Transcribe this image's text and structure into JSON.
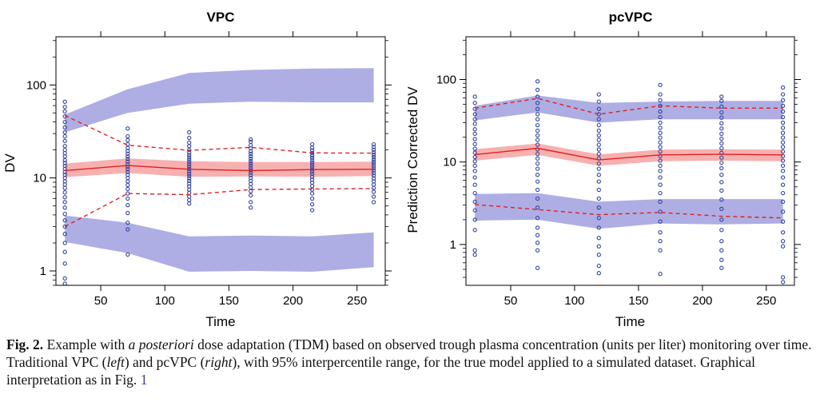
{
  "chart_data": [
    {
      "type": "vpc",
      "title": "VPC",
      "xlabel": "Time",
      "ylabel": "DV",
      "yscale": "log",
      "xlim": [
        15,
        272
      ],
      "ylim": [
        0.7,
        330
      ],
      "xticks": [
        50,
        100,
        150,
        200,
        250
      ],
      "xtick_labels": [
        "50",
        "100",
        "150",
        "200",
        "250"
      ],
      "yticks": [
        1,
        10,
        100
      ],
      "ytick_labels": [
        "1",
        "10",
        "100"
      ],
      "bins_x": [
        22,
        71,
        119,
        167,
        215,
        263
      ],
      "median_band": {
        "lower": [
          10.2,
          11.3,
          10.3,
          10.4,
          10.3,
          10.5
        ],
        "upper": [
          14.3,
          16.2,
          15.1,
          14.8,
          14.8,
          15.0
        ]
      },
      "upper_pi_band": {
        "lower": [
          31,
          50,
          63,
          66,
          65,
          65
        ],
        "upper": [
          48,
          90,
          135,
          145,
          150,
          152
        ]
      },
      "lower_pi_band": {
        "lower": [
          2.05,
          1.55,
          0.98,
          1.0,
          0.98,
          1.1
        ],
        "upper": [
          3.95,
          3.3,
          2.35,
          2.4,
          2.35,
          2.6
        ]
      },
      "observed_median": [
        12.0,
        13.6,
        12.4,
        12.0,
        12.3,
        12.4
      ],
      "observed_upper": [
        47,
        22.5,
        19.8,
        21.3,
        18.6,
        18.5
      ],
      "observed_lower": [
        3.0,
        6.8,
        6.6,
        7.5,
        7.6,
        7.7
      ],
      "observations": [
        {
          "x": 22,
          "y": [
            0.73,
            0.83,
            1.2,
            1.6,
            2.0,
            2.5,
            3.0,
            3.5,
            4.1,
            4.8,
            5.5,
            6.2,
            7.0,
            7.8,
            8.5,
            9.2,
            10.0,
            10.8,
            11.6,
            12.5,
            13.5,
            14.5,
            15.5,
            17.0,
            18.5,
            20,
            22,
            25,
            28,
            31,
            35,
            40,
            46,
            52,
            58,
            66
          ]
        },
        {
          "x": 71,
          "y": [
            1.5,
            2.8,
            3.3,
            4.2,
            5.1,
            6.0,
            6.8,
            7.6,
            8.4,
            9.2,
            10.0,
            10.8,
            11.6,
            12.4,
            13.2,
            14.0,
            15.0,
            16.0,
            17.0,
            18.2,
            19.5,
            21,
            23,
            25.5,
            28,
            34
          ]
        },
        {
          "x": 119,
          "y": [
            5.3,
            5.8,
            6.3,
            6.9,
            7.5,
            8.1,
            8.7,
            9.3,
            9.9,
            10.5,
            11.1,
            11.8,
            12.5,
            13.2,
            14.0,
            14.8,
            15.7,
            16.6,
            17.6,
            18.7,
            20,
            22,
            24,
            27,
            31
          ]
        },
        {
          "x": 167,
          "y": [
            4.8,
            5.5,
            6.5,
            7.2,
            7.9,
            8.6,
            9.3,
            10.0,
            10.7,
            11.4,
            12.1,
            12.8,
            13.6,
            14.4,
            15.2,
            16.1,
            17.1,
            18.2,
            19.4,
            20.8,
            22.5,
            24.5,
            26
          ]
        },
        {
          "x": 215,
          "y": [
            4.5,
            5.2,
            6.0,
            6.8,
            7.5,
            8.2,
            8.9,
            9.6,
            10.3,
            11.0,
            11.7,
            12.4,
            13.1,
            13.9,
            14.7,
            15.6,
            16.5,
            17.5,
            18.6,
            19.8,
            21.2,
            23
          ]
        },
        {
          "x": 263,
          "y": [
            5.5,
            6.3,
            7.1,
            7.8,
            8.5,
            9.2,
            9.9,
            10.6,
            11.3,
            12.0,
            12.7,
            13.4,
            14.2,
            15.0,
            15.9,
            16.8,
            17.8,
            18.9,
            20.1,
            21.5,
            23
          ]
        }
      ]
    },
    {
      "type": "vpc",
      "title": "pcVPC",
      "xlabel": "Time",
      "ylabel": "Prediction Corrected DV",
      "yscale": "log",
      "xlim": [
        15,
        272
      ],
      "ylim": [
        0.32,
        330
      ],
      "xticks": [
        50,
        100,
        150,
        200,
        250
      ],
      "xtick_labels": [
        "50",
        "100",
        "150",
        "200",
        "250"
      ],
      "yticks": [
        1,
        10,
        100
      ],
      "ytick_labels": [
        "1",
        "10",
        "100"
      ],
      "bins_x": [
        22,
        71,
        119,
        167,
        215,
        263
      ],
      "median_band": {
        "lower": [
          10.4,
          12.2,
          9.0,
          10.2,
          10.4,
          10.2
        ],
        "upper": [
          14.3,
          16.8,
          12.4,
          14.1,
          14.3,
          14.1
        ]
      },
      "upper_pi_band": {
        "lower": [
          32,
          40,
          30,
          33,
          33,
          33
        ],
        "upper": [
          48,
          64,
          52,
          54,
          55,
          55
        ]
      },
      "lower_pi_band": {
        "lower": [
          1.95,
          2.0,
          1.55,
          1.8,
          1.75,
          1.8
        ],
        "upper": [
          4.1,
          4.2,
          3.3,
          3.55,
          3.55,
          3.55
        ]
      },
      "observed_median": [
        12.3,
        14.7,
        10.6,
        12.2,
        12.4,
        12.2
      ],
      "observed_upper": [
        45,
        59,
        38,
        48,
        45,
        45
      ],
      "observed_lower": [
        3.05,
        2.65,
        2.3,
        2.45,
        2.2,
        2.1
      ],
      "observations": [
        {
          "x": 22,
          "y": [
            0.75,
            0.85,
            1.5,
            2.0,
            2.6,
            3.3,
            4.2,
            5.3,
            6.5,
            7.8,
            9.0,
            10.2,
            11.5,
            13.0,
            14.5,
            16.5,
            19,
            22,
            25,
            29,
            33,
            38,
            44,
            52,
            62
          ]
        },
        {
          "x": 71,
          "y": [
            0.52,
            0.85,
            1.05,
            1.3,
            1.6,
            2.1,
            2.8,
            3.6,
            4.6,
            5.8,
            7.0,
            8.3,
            9.6,
            11.0,
            12.5,
            14.2,
            16.2,
            18.5,
            21,
            24,
            28,
            33,
            38,
            44,
            52,
            62,
            75,
            95
          ]
        },
        {
          "x": 119,
          "y": [
            0.45,
            0.55,
            0.75,
            0.95,
            1.2,
            1.6,
            2.1,
            2.8,
            3.6,
            4.6,
            5.8,
            7.0,
            8.3,
            9.6,
            11.0,
            12.5,
            14.2,
            16.2,
            18.5,
            21,
            24,
            28,
            33,
            38,
            44,
            54,
            66
          ]
        },
        {
          "x": 167,
          "y": [
            0.44,
            0.85,
            1.1,
            1.4,
            1.9,
            2.5,
            3.3,
            4.2,
            5.3,
            6.5,
            7.8,
            9.0,
            10.4,
            11.8,
            13.4,
            15.2,
            17.3,
            19.8,
            22.6,
            26,
            30,
            35,
            41,
            48,
            56,
            66,
            86
          ]
        },
        {
          "x": 215,
          "y": [
            0.52,
            0.65,
            0.85,
            1.1,
            1.5,
            2.0,
            2.7,
            3.5,
            4.5,
            5.7,
            7.0,
            8.4,
            9.8,
            11.3,
            12.9,
            14.7,
            16.8,
            19.2,
            22,
            25.5,
            29.5,
            34.5,
            40,
            47,
            55,
            62
          ]
        },
        {
          "x": 263,
          "y": [
            0.35,
            0.4,
            0.95,
            1.1,
            1.4,
            1.9,
            2.5,
            3.3,
            4.2,
            5.3,
            6.5,
            7.8,
            9.0,
            10.4,
            11.8,
            13.4,
            15.2,
            17.3,
            19.8,
            22.6,
            26,
            30,
            35,
            41,
            48,
            56,
            66,
            80
          ]
        }
      ]
    }
  ],
  "colors": {
    "pi_band": "#aeaee4",
    "median_band": "#f7b0b0",
    "observed_lines": "#e02020",
    "points": "#3344a0",
    "axes": "#000000"
  },
  "caption": {
    "label": "Fig. 2.",
    "text_1": " Example with ",
    "italic_1": "a posteriori",
    "text_2": " dose adaptation (TDM) based on observed trough plasma concentration (units per liter) monitoring over time. Traditional VPC (",
    "italic_2": "left",
    "text_3": ") and pcVPC (",
    "italic_3": "right",
    "text_4": "), with 95% interpercentile range, for the true model applied to a simulated dataset. Graphical interpretation as in Fig. ",
    "ref": "1"
  }
}
